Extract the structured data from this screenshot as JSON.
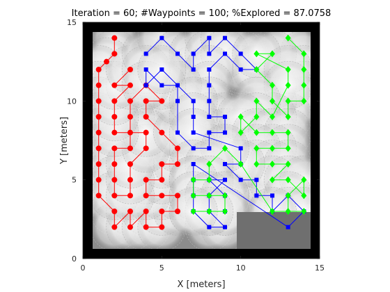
{
  "chart_data": {
    "type": "line",
    "title": "Iteration = 60; #Waypoints = 100; %Explored = 87.0758",
    "xlabel": "X [meters]",
    "ylabel": "Y [meters]",
    "xlim": [
      0,
      15
    ],
    "ylim": [
      0,
      15
    ],
    "xticks": [
      "0",
      "5",
      "10",
      "15"
    ],
    "yticks": [
      "0",
      "5",
      "10",
      "15"
    ],
    "grid": false,
    "legend": "none",
    "background": "explored-occupancy grayscale map",
    "series": [
      {
        "color": "#ff0000",
        "marker": "circle",
        "points": [
          [
            2,
            14
          ],
          [
            2,
            13
          ],
          [
            1.5,
            12.5
          ],
          [
            1,
            12
          ],
          [
            1,
            11
          ],
          [
            1,
            10
          ],
          [
            1,
            9
          ],
          [
            1,
            8
          ],
          [
            1,
            7
          ],
          [
            1,
            6
          ],
          [
            1,
            5
          ],
          [
            1,
            4
          ],
          [
            2,
            3
          ],
          [
            2,
            2
          ],
          [
            3,
            3
          ],
          [
            3,
            2
          ],
          [
            4,
            3
          ],
          [
            4,
            2
          ],
          [
            5,
            2
          ],
          [
            5,
            3
          ],
          [
            6,
            3
          ],
          [
            6,
            4
          ],
          [
            5,
            4
          ],
          [
            4,
            4
          ],
          [
            4,
            5
          ],
          [
            5,
            5
          ],
          [
            5,
            6
          ],
          [
            6,
            6
          ],
          [
            6,
            7
          ],
          [
            5,
            8
          ],
          [
            4,
            9
          ],
          [
            4,
            10
          ],
          [
            5,
            10
          ],
          [
            4,
            11
          ],
          [
            3,
            10
          ],
          [
            3,
            9
          ],
          [
            3,
            8
          ],
          [
            3,
            7
          ],
          [
            2,
            7
          ],
          [
            2,
            6
          ],
          [
            2,
            5
          ],
          [
            2,
            4
          ],
          [
            3,
            4
          ],
          [
            3,
            5
          ],
          [
            3,
            6
          ],
          [
            4,
            7
          ],
          [
            4,
            8
          ],
          [
            2,
            8
          ],
          [
            2,
            9
          ],
          [
            2,
            10
          ],
          [
            3,
            11
          ],
          [
            2,
            11
          ],
          [
            3,
            12
          ]
        ]
      },
      {
        "color": "#0000ff",
        "marker": "square",
        "points": [
          [
            4,
            13
          ],
          [
            5,
            14
          ],
          [
            6,
            13
          ],
          [
            7,
            12
          ],
          [
            7,
            13
          ],
          [
            8,
            14
          ],
          [
            8,
            13
          ],
          [
            9,
            14
          ],
          [
            10,
            13
          ],
          [
            11,
            12
          ],
          [
            10,
            12
          ],
          [
            9,
            13
          ],
          [
            8,
            12
          ],
          [
            8,
            11
          ],
          [
            8,
            10
          ],
          [
            8,
            9
          ],
          [
            9,
            9
          ],
          [
            9,
            8
          ],
          [
            8,
            8
          ],
          [
            8,
            7
          ],
          [
            7,
            7
          ],
          [
            6,
            8
          ],
          [
            6,
            10
          ],
          [
            6,
            11
          ],
          [
            5,
            11
          ],
          [
            4,
            12
          ],
          [
            4,
            11
          ],
          [
            5,
            12
          ],
          [
            7,
            10
          ],
          [
            7,
            9
          ],
          [
            7,
            8
          ],
          [
            10,
            7
          ],
          [
            10,
            6
          ],
          [
            9,
            6
          ],
          [
            10,
            5
          ],
          [
            11,
            5
          ],
          [
            11,
            4
          ],
          [
            12,
            4
          ],
          [
            12,
            3
          ],
          [
            13,
            4
          ],
          [
            14,
            3
          ],
          [
            13,
            2
          ],
          [
            7,
            6
          ],
          [
            7,
            5
          ],
          [
            7,
            4
          ],
          [
            7,
            3
          ],
          [
            8,
            2
          ],
          [
            9,
            2
          ],
          [
            8,
            3
          ],
          [
            8,
            4
          ],
          [
            9,
            5
          ],
          [
            8,
            5
          ],
          [
            9,
            4
          ],
          [
            9,
            3
          ]
        ]
      },
      {
        "color": "#00ff00",
        "marker": "diamond",
        "points": [
          [
            13,
            14
          ],
          [
            14,
            13
          ],
          [
            14,
            12
          ],
          [
            14,
            11
          ],
          [
            14,
            10
          ],
          [
            13,
            10
          ],
          [
            13,
            9
          ],
          [
            12,
            10
          ],
          [
            12,
            11
          ],
          [
            11,
            12
          ],
          [
            12,
            13
          ],
          [
            11,
            13
          ],
          [
            13,
            12
          ],
          [
            13,
            11
          ],
          [
            12,
            9
          ],
          [
            11,
            10
          ],
          [
            11,
            9
          ],
          [
            10,
            8
          ],
          [
            10,
            9
          ],
          [
            11,
            8
          ],
          [
            12,
            8
          ],
          [
            13,
            8
          ],
          [
            13,
            7
          ],
          [
            12,
            7
          ],
          [
            11,
            7
          ],
          [
            11,
            6
          ],
          [
            12,
            6
          ],
          [
            13,
            6
          ],
          [
            12,
            5
          ],
          [
            13,
            5
          ],
          [
            14,
            4
          ],
          [
            14,
            5
          ],
          [
            13,
            4
          ],
          [
            13,
            3
          ],
          [
            14,
            3
          ],
          [
            12,
            3
          ],
          [
            10,
            6
          ],
          [
            9,
            7
          ],
          [
            8,
            6
          ],
          [
            8,
            5
          ],
          [
            7,
            5
          ],
          [
            7,
            4
          ],
          [
            8,
            4
          ],
          [
            9,
            4
          ],
          [
            9,
            3
          ],
          [
            8,
            3
          ],
          [
            7,
            3
          ]
        ]
      }
    ]
  }
}
